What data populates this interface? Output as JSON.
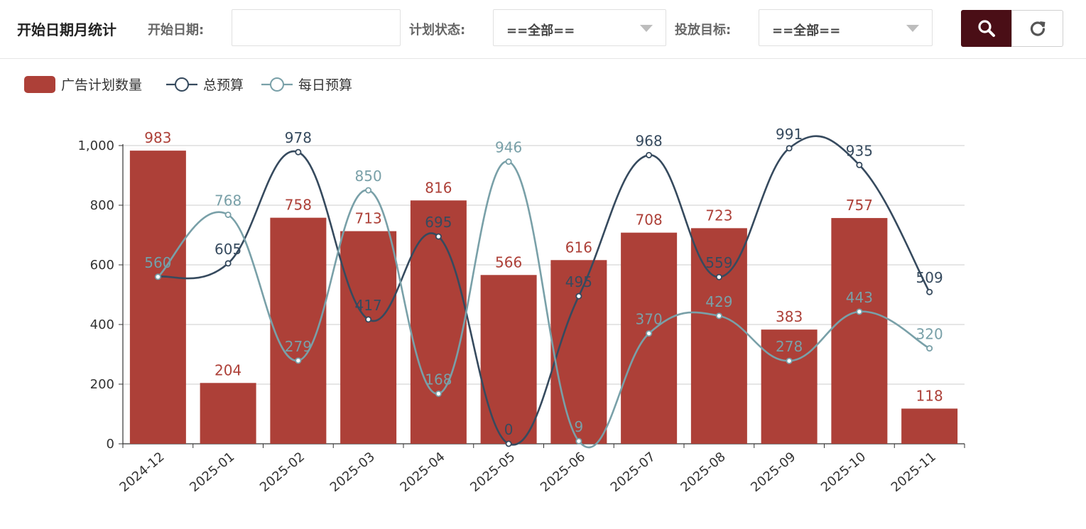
{
  "toolbar": {
    "title": "开始日期月统计",
    "start_date_label": "开始日期:",
    "start_date_value": "",
    "plan_status_label": "计划状态:",
    "plan_status_value": "==全部==",
    "target_label": "投放目标:",
    "target_value": "==全部==",
    "search_icon": "search-icon",
    "refresh_icon": "refresh-icon"
  },
  "colors": {
    "bar": "#ad4038",
    "total_budget": "#364a5e",
    "daily_budget": "#79a0a8",
    "search_button": "#4a0e16"
  },
  "chart_data": {
    "type": "bar",
    "categories": [
      "2024-12",
      "2025-01",
      "2025-02",
      "2025-03",
      "2025-04",
      "2025-05",
      "2025-06",
      "2025-07",
      "2025-08",
      "2025-09",
      "2025-10",
      "2025-11"
    ],
    "series": [
      {
        "name": "广告计划数量",
        "type": "bar",
        "values": [
          983,
          204,
          758,
          713,
          816,
          566,
          616,
          708,
          723,
          383,
          757,
          118
        ]
      },
      {
        "name": "总预算",
        "type": "line",
        "values": [
          560,
          605,
          978,
          417,
          695,
          0,
          495,
          968,
          559,
          991,
          935,
          509
        ]
      },
      {
        "name": "每日预算",
        "type": "line",
        "values": [
          560,
          768,
          279,
          850,
          168,
          946,
          9,
          370,
          429,
          278,
          443,
          320
        ]
      }
    ],
    "ylim": [
      0,
      1000
    ],
    "yticks": [
      "0",
      "200",
      "400",
      "600",
      "800",
      "1,000"
    ],
    "grid": true,
    "legend": "top-left",
    "title": "",
    "xlabel": "",
    "ylabel": ""
  }
}
